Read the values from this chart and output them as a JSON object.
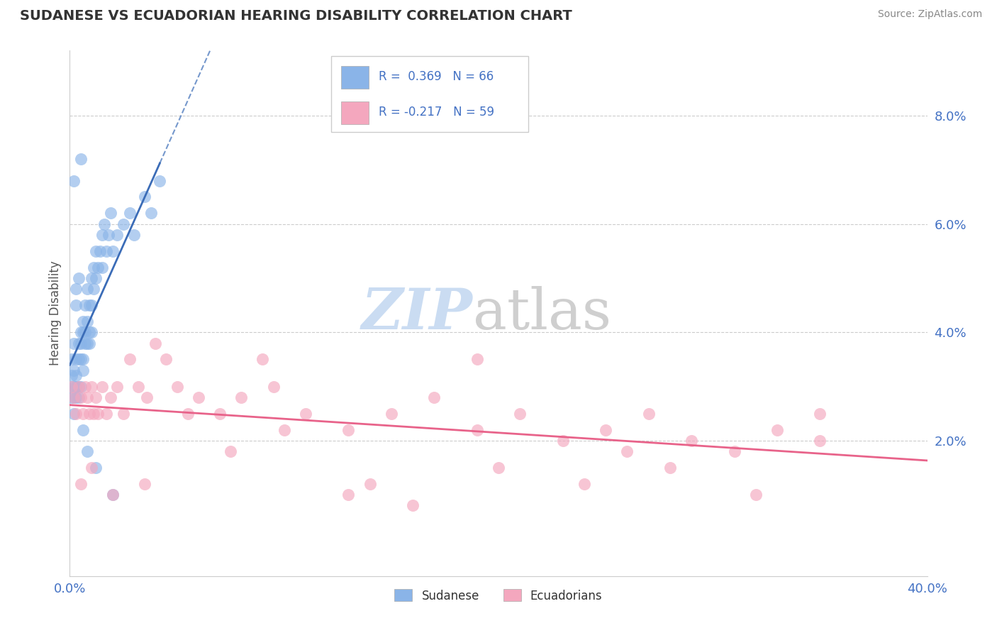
{
  "title": "SUDANESE VS ECUADORIAN HEARING DISABILITY CORRELATION CHART",
  "source": "Source: ZipAtlas.com",
  "ylabel": "Hearing Disability",
  "xlim": [
    0.0,
    0.4
  ],
  "ylim": [
    -0.005,
    0.092
  ],
  "y_ticks": [
    0.02,
    0.04,
    0.06,
    0.08
  ],
  "y_tick_labels": [
    "2.0%",
    "4.0%",
    "6.0%",
    "8.0%"
  ],
  "x_ticks": [
    0.0,
    0.4
  ],
  "x_tick_labels": [
    "0.0%",
    "40.0%"
  ],
  "sudanese_color": "#8AB4E8",
  "ecuadorian_color": "#F4A7BE",
  "sudanese_line_color": "#3B6CB7",
  "ecuadorian_line_color": "#E8638A",
  "tick_color": "#4472C4",
  "watermark_zip": "ZIP",
  "watermark_atlas": "atlas",
  "legend_line1": "R =  0.369   N = 66",
  "legend_line2": "R = -0.217   N = 59",
  "sudanese_x": [
    0.001,
    0.001,
    0.001,
    0.001,
    0.002,
    0.002,
    0.002,
    0.002,
    0.002,
    0.003,
    0.003,
    0.003,
    0.003,
    0.004,
    0.004,
    0.004,
    0.004,
    0.005,
    0.005,
    0.005,
    0.005,
    0.006,
    0.006,
    0.006,
    0.006,
    0.007,
    0.007,
    0.007,
    0.008,
    0.008,
    0.008,
    0.009,
    0.009,
    0.009,
    0.01,
    0.01,
    0.01,
    0.011,
    0.011,
    0.012,
    0.012,
    0.013,
    0.014,
    0.015,
    0.015,
    0.016,
    0.017,
    0.018,
    0.019,
    0.02,
    0.022,
    0.025,
    0.028,
    0.03,
    0.035,
    0.038,
    0.042,
    0.002,
    0.003,
    0.003,
    0.006,
    0.004,
    0.008,
    0.012,
    0.02,
    0.005
  ],
  "sudanese_y": [
    0.03,
    0.035,
    0.028,
    0.032,
    0.038,
    0.025,
    0.033,
    0.03,
    0.028,
    0.035,
    0.032,
    0.03,
    0.028,
    0.038,
    0.035,
    0.03,
    0.028,
    0.04,
    0.038,
    0.035,
    0.03,
    0.042,
    0.04,
    0.035,
    0.033,
    0.045,
    0.04,
    0.038,
    0.048,
    0.042,
    0.038,
    0.045,
    0.04,
    0.038,
    0.05,
    0.045,
    0.04,
    0.052,
    0.048,
    0.055,
    0.05,
    0.052,
    0.055,
    0.058,
    0.052,
    0.06,
    0.055,
    0.058,
    0.062,
    0.055,
    0.058,
    0.06,
    0.062,
    0.058,
    0.065,
    0.062,
    0.068,
    0.068,
    0.048,
    0.045,
    0.022,
    0.05,
    0.018,
    0.015,
    0.01,
    0.072
  ],
  "ecuadorian_x": [
    0.001,
    0.002,
    0.003,
    0.004,
    0.005,
    0.006,
    0.007,
    0.008,
    0.009,
    0.01,
    0.011,
    0.012,
    0.013,
    0.015,
    0.017,
    0.019,
    0.022,
    0.025,
    0.028,
    0.032,
    0.036,
    0.04,
    0.045,
    0.05,
    0.06,
    0.07,
    0.08,
    0.095,
    0.11,
    0.13,
    0.15,
    0.17,
    0.19,
    0.21,
    0.23,
    0.25,
    0.27,
    0.29,
    0.31,
    0.33,
    0.35,
    0.005,
    0.01,
    0.02,
    0.035,
    0.055,
    0.075,
    0.1,
    0.13,
    0.16,
    0.2,
    0.24,
    0.28,
    0.19,
    0.35,
    0.26,
    0.32,
    0.09,
    0.14
  ],
  "ecuadorian_y": [
    0.03,
    0.028,
    0.025,
    0.03,
    0.028,
    0.025,
    0.03,
    0.028,
    0.025,
    0.03,
    0.025,
    0.028,
    0.025,
    0.03,
    0.025,
    0.028,
    0.03,
    0.025,
    0.035,
    0.03,
    0.028,
    0.038,
    0.035,
    0.03,
    0.028,
    0.025,
    0.028,
    0.03,
    0.025,
    0.022,
    0.025,
    0.028,
    0.022,
    0.025,
    0.02,
    0.022,
    0.025,
    0.02,
    0.018,
    0.022,
    0.02,
    0.012,
    0.015,
    0.01,
    0.012,
    0.025,
    0.018,
    0.022,
    0.01,
    0.008,
    0.015,
    0.012,
    0.015,
    0.035,
    0.025,
    0.018,
    0.01,
    0.035,
    0.012
  ]
}
